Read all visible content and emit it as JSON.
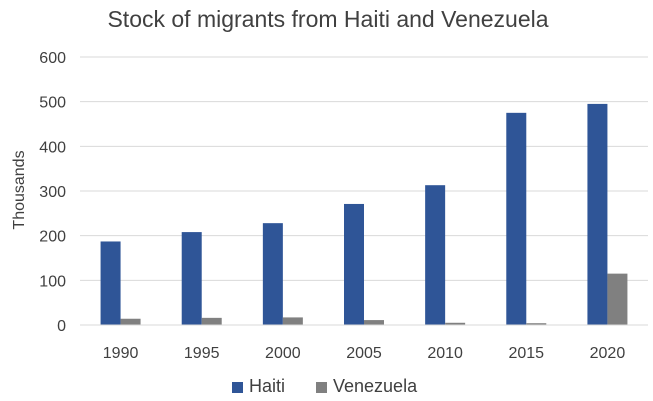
{
  "chart_data": {
    "type": "bar",
    "title": "Stock of migrants from Haiti and Venezuela",
    "xlabel": "",
    "ylabel": "Thousands",
    "categories": [
      "1990",
      "1995",
      "2000",
      "2005",
      "2010",
      "2015",
      "2020"
    ],
    "series": [
      {
        "name": "Haiti",
        "color": "#2f5597",
        "values": [
          187,
          208,
          228,
          271,
          313,
          475,
          495
        ]
      },
      {
        "name": "Venezuela",
        "color": "#808080",
        "values": [
          14,
          16,
          17,
          11,
          5,
          4,
          115
        ]
      }
    ],
    "ylim": [
      0,
      600
    ],
    "yticks": [
      "0",
      "100",
      "200",
      "300",
      "400",
      "500",
      "600"
    ],
    "grid": true,
    "legend": "bottom"
  }
}
